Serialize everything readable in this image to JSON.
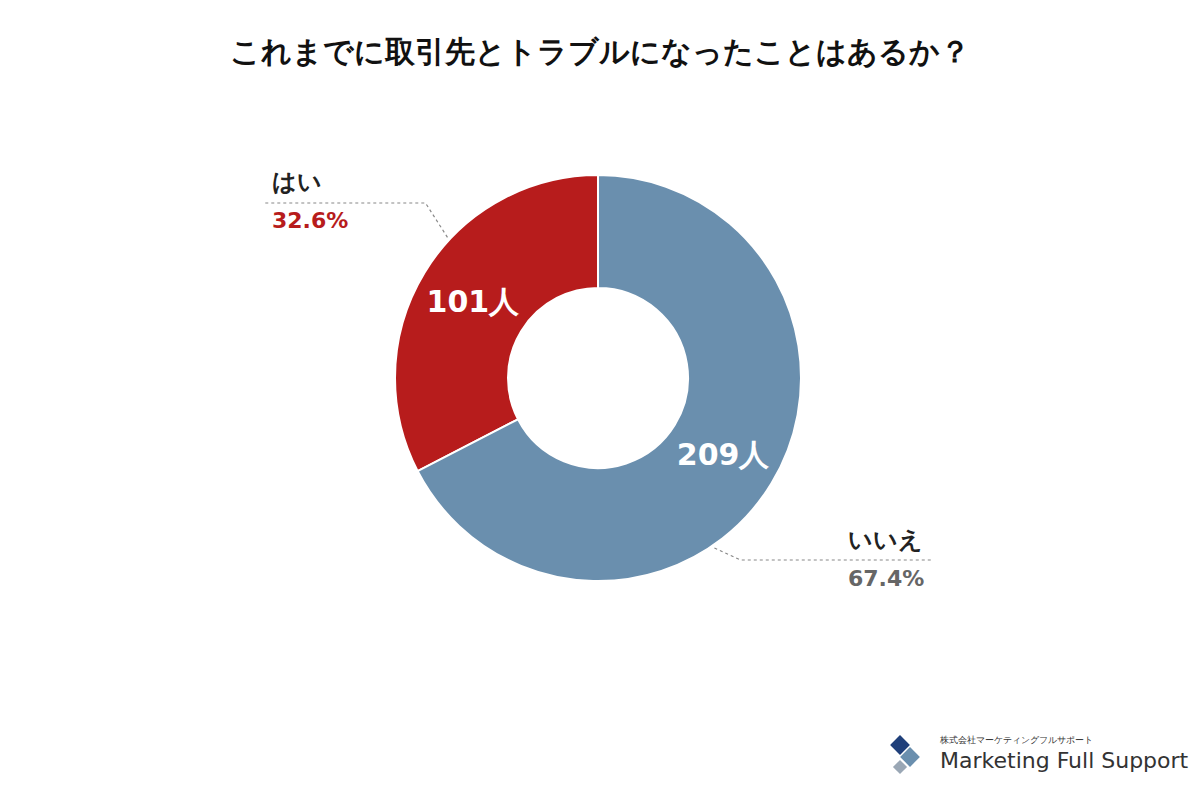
{
  "chart_data": {
    "type": "pie",
    "title": "これまでに取引先とトラブルになったことはあるか？",
    "categories": [
      "はい",
      "いいえ"
    ],
    "values": [
      101,
      209
    ],
    "value_labels": [
      "101人",
      "209人"
    ],
    "percents": [
      32.6,
      67.4
    ],
    "percent_labels": [
      "32.6%",
      "67.4%"
    ],
    "colors": [
      "#b71c1c",
      "#6a8fae"
    ],
    "data_labels": true
  },
  "logo": {
    "company": "株式会社マーケティングフルサポート",
    "name": "Marketing Full Support"
  }
}
